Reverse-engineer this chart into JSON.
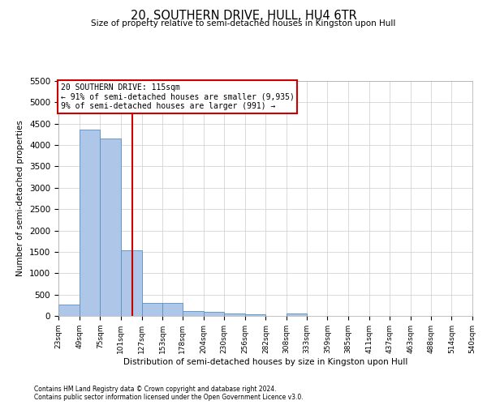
{
  "title": "20, SOUTHERN DRIVE, HULL, HU4 6TR",
  "subtitle": "Size of property relative to semi-detached houses in Kingston upon Hull",
  "xlabel": "Distribution of semi-detached houses by size in Kingston upon Hull",
  "ylabel": "Number of semi-detached properties",
  "footnote1": "Contains HM Land Registry data © Crown copyright and database right 2024.",
  "footnote2": "Contains public sector information licensed under the Open Government Licence v3.0.",
  "annotation_title": "20 SOUTHERN DRIVE: 115sqm",
  "annotation_line1": "← 91% of semi-detached houses are smaller (9,935)",
  "annotation_line2": "9% of semi-detached houses are larger (991) →",
  "property_line_x": 115,
  "bar_color": "#aec6e8",
  "bar_edge_color": "#5a8fc0",
  "property_line_color": "#cc0000",
  "annotation_box_color": "#cc0000",
  "ylim": [
    0,
    5500
  ],
  "yticks": [
    0,
    500,
    1000,
    1500,
    2000,
    2500,
    3000,
    3500,
    4000,
    4500,
    5000,
    5500
  ],
  "bin_edges": [
    23,
    49,
    75,
    101,
    127,
    153,
    178,
    204,
    230,
    256,
    282,
    308,
    333,
    359,
    385,
    411,
    437,
    463,
    488,
    514,
    540
  ],
  "bin_labels": [
    "23sqm",
    "49sqm",
    "75sqm",
    "101sqm",
    "127sqm",
    "153sqm",
    "178sqm",
    "204sqm",
    "230sqm",
    "256sqm",
    "282sqm",
    "308sqm",
    "333sqm",
    "359sqm",
    "385sqm",
    "411sqm",
    "437sqm",
    "463sqm",
    "488sqm",
    "514sqm",
    "540sqm"
  ],
  "bar_heights": [
    270,
    4370,
    4150,
    1540,
    310,
    305,
    120,
    100,
    55,
    45,
    0,
    55,
    0,
    0,
    0,
    0,
    0,
    0,
    0,
    0
  ]
}
